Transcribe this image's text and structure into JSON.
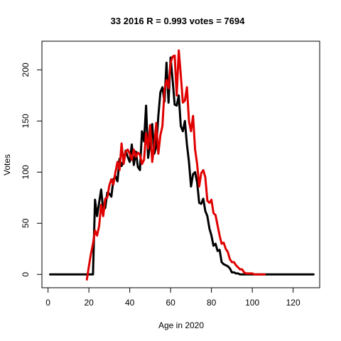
{
  "chart_data": {
    "type": "line",
    "title": "33 2016 R = 0.993 votes = 7694",
    "xlabel": "Age in 2020",
    "ylabel": "Votes",
    "xlim": [
      -3,
      133
    ],
    "ylim": [
      -13,
      228
    ],
    "xticks": [
      0,
      20,
      40,
      60,
      80,
      100,
      120
    ],
    "yticks": [
      0,
      50,
      100,
      150,
      200
    ],
    "grid": false,
    "series": [
      {
        "color": "#000000",
        "x": [
          1,
          2,
          3,
          4,
          5,
          6,
          7,
          8,
          9,
          10,
          11,
          12,
          13,
          14,
          15,
          16,
          17,
          18,
          19,
          20,
          21,
          22,
          23,
          24,
          25,
          26,
          27,
          28,
          29,
          30,
          31,
          32,
          33,
          34,
          35,
          36,
          37,
          38,
          39,
          40,
          41,
          42,
          43,
          44,
          45,
          46,
          47,
          48,
          49,
          50,
          51,
          52,
          53,
          54,
          55,
          56,
          57,
          58,
          59,
          60,
          61,
          62,
          63,
          64,
          65,
          66,
          67,
          68,
          69,
          70,
          71,
          72,
          73,
          74,
          75,
          76,
          77,
          78,
          79,
          80,
          81,
          82,
          83,
          84,
          85,
          86,
          87,
          88,
          89,
          90,
          91,
          92,
          93,
          94,
          95,
          96,
          97,
          98,
          99,
          100,
          101,
          102,
          103,
          104,
          105,
          106,
          107,
          108,
          109,
          110,
          111,
          112,
          113,
          114,
          115,
          116,
          117,
          118,
          119,
          120,
          121,
          122,
          123,
          124,
          125,
          126,
          127,
          128,
          129,
          130
        ],
        "y": [
          0,
          0,
          0,
          0,
          0,
          0,
          0,
          0,
          0,
          0,
          0,
          0,
          0,
          0,
          0,
          0,
          0,
          0,
          0,
          0,
          0,
          0,
          73,
          57,
          70,
          83,
          63,
          65,
          80,
          79,
          76,
          93,
          96,
          91,
          113,
          106,
          111,
          121,
          115,
          110,
          127,
          107,
          120,
          105,
          102,
          140,
          130,
          165,
          114,
          128,
          147,
          118,
          125,
          155,
          178,
          183,
          169,
          207,
          168,
          212,
          190,
          166,
          165,
          175,
          145,
          140,
          150,
          127,
          110,
          86,
          98,
          100,
          90,
          70,
          69,
          74,
          62,
          57,
          45,
          38,
          28,
          30,
          23,
          24,
          12,
          10,
          9,
          8,
          6,
          2,
          2,
          1,
          1,
          0,
          0,
          0,
          0,
          0,
          0,
          0,
          0,
          0,
          0,
          0,
          0,
          0,
          0,
          0,
          0,
          0,
          0,
          0,
          0,
          0,
          0,
          0,
          0,
          0,
          0,
          0,
          0,
          0,
          0,
          0,
          0,
          0,
          0,
          0,
          0,
          0
        ]
      },
      {
        "color": "#e00000",
        "x": [
          19,
          20,
          21,
          22,
          23,
          24,
          25,
          26,
          27,
          28,
          29,
          30,
          31,
          32,
          33,
          34,
          35,
          36,
          37,
          38,
          39,
          40,
          41,
          42,
          43,
          44,
          45,
          46,
          47,
          48,
          49,
          50,
          51,
          52,
          53,
          54,
          55,
          56,
          57,
          58,
          59,
          60,
          61,
          62,
          63,
          64,
          65,
          66,
          67,
          68,
          69,
          70,
          71,
          72,
          73,
          74,
          75,
          76,
          77,
          78,
          79,
          80,
          81,
          82,
          83,
          84,
          85,
          86,
          87,
          88,
          89,
          90,
          91,
          92,
          93,
          94,
          95,
          96,
          97,
          98,
          99,
          100,
          101,
          102,
          103,
          104,
          105,
          106
        ],
        "y": [
          -5,
          8,
          20,
          30,
          43,
          38,
          47,
          68,
          57,
          74,
          75,
          87,
          93,
          88,
          100,
          110,
          102,
          128,
          108,
          120,
          122,
          118,
          112,
          122,
          115,
          119,
          117,
          108,
          112,
          138,
          123,
          146,
          110,
          126,
          148,
          118,
          136,
          145,
          180,
          190,
          182,
          207,
          213,
          214,
          175,
          219,
          195,
          168,
          170,
          183,
          150,
          140,
          155,
          122,
          108,
          86,
          99,
          102,
          95,
          72,
          70,
          73,
          60,
          58,
          48,
          38,
          30,
          31,
          25,
          22,
          15,
          12,
          12,
          9,
          7,
          5,
          5,
          2,
          1,
          1,
          1,
          1,
          0,
          0,
          0,
          0,
          0,
          0
        ]
      }
    ]
  }
}
